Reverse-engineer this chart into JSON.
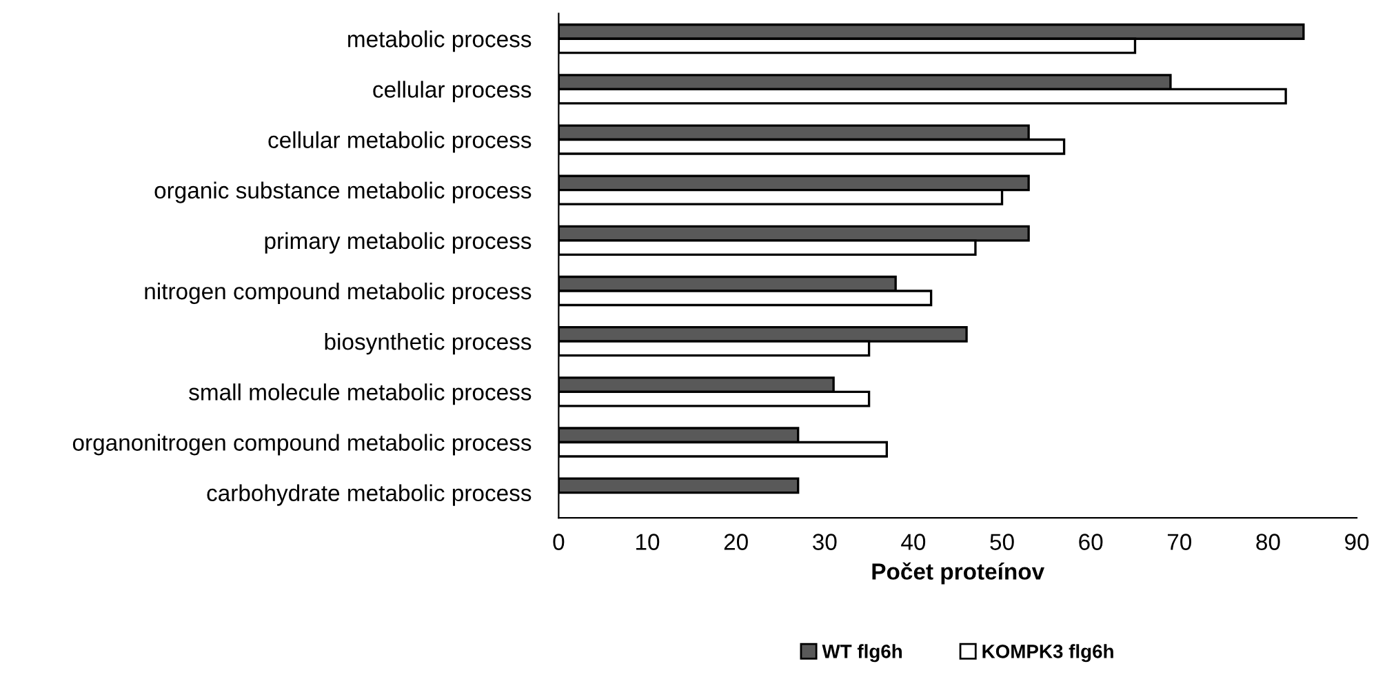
{
  "chart_data": {
    "type": "bar",
    "orientation": "horizontal",
    "xlabel": "Počet proteínov",
    "categories": [
      "metabolic process",
      "cellular process",
      "cellular metabolic process",
      "organic substance metabolic process",
      "primary metabolic process",
      "nitrogen compound metabolic process",
      "biosynthetic process",
      "small molecule metabolic process",
      "organonitrogen compound metabolic process",
      "carbohydrate metabolic process"
    ],
    "series": [
      {
        "name": "WT flg6h",
        "color": "#595959",
        "values": [
          84,
          69,
          53,
          53,
          53,
          38,
          46,
          31,
          27,
          27
        ]
      },
      {
        "name": "KOMPK3 flg6h",
        "color": "#ffffff",
        "values": [
          65,
          82,
          57,
          50,
          47,
          42,
          35,
          35,
          37,
          null
        ]
      }
    ],
    "xlim": [
      0,
      90
    ],
    "xticks": [
      0,
      10,
      20,
      30,
      40,
      50,
      60,
      70,
      80,
      90
    ],
    "grid": false,
    "legend": "bottom"
  }
}
